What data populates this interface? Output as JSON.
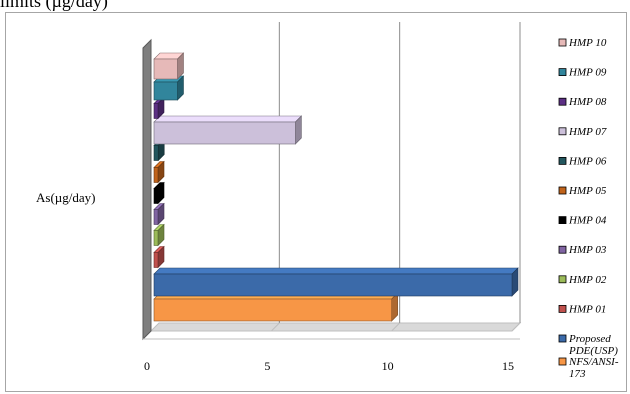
{
  "title": "limits (µg/day)",
  "chart_data": {
    "type": "bar",
    "orientation": "horizontal",
    "category": "As(µg/day)",
    "xlim": [
      0,
      15
    ],
    "xticks": [
      "0",
      "5",
      "10",
      "15"
    ],
    "grid": true,
    "legend_position": "right",
    "series": [
      {
        "name": "NFS/ANSI-173",
        "value": 10.0,
        "color": "#f79646"
      },
      {
        "name": "Proposed PDE(USP)",
        "value": 15.0,
        "color": "#3b6aa9"
      },
      {
        "name": "HMP 01",
        "value": 0.15,
        "color": "#c0504d"
      },
      {
        "name": "HMP 02",
        "value": 0.15,
        "color": "#9bbb59"
      },
      {
        "name": "HMP 03",
        "value": 0.15,
        "color": "#8064a2"
      },
      {
        "name": "HMP 04",
        "value": 0.15,
        "color": "#000000"
      },
      {
        "name": "HMP 05",
        "value": 0.15,
        "color": "#c0631b"
      },
      {
        "name": "HMP 06",
        "value": 0.3,
        "color": "#23565e"
      },
      {
        "name": "HMP 07",
        "value": 6.0,
        "color": "#ccc0da"
      },
      {
        "name": "HMP 08",
        "value": 0.2,
        "color": "#5c2f84"
      },
      {
        "name": "HMP 09",
        "value": 1.1,
        "color": "#31859c"
      },
      {
        "name": "HMP 10",
        "value": 1.1,
        "color": "#e6b9b8"
      }
    ]
  }
}
